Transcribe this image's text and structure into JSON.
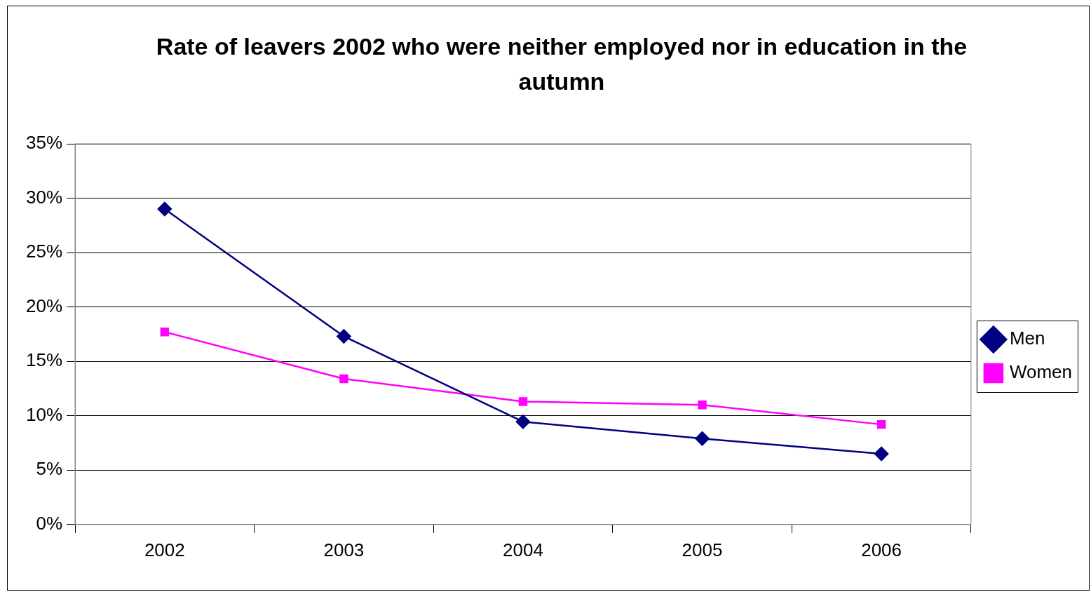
{
  "chart_data": {
    "type": "line",
    "title": "Rate of leavers 2002 who were neither employed nor in education in the autumn",
    "categories": [
      "2002",
      "2003",
      "2004",
      "2005",
      "2006"
    ],
    "series": [
      {
        "name": "Men",
        "color": "#000080",
        "marker": "diamond",
        "values": [
          29,
          17.3,
          9.45,
          7.9,
          6.5
        ]
      },
      {
        "name": "Women",
        "color": "#ff00ff",
        "marker": "square",
        "values": [
          17.7,
          13.4,
          11.3,
          11,
          9.2
        ]
      }
    ],
    "ylim": [
      0,
      35
    ],
    "yticks": [
      {
        "value": 0,
        "label": "0%"
      },
      {
        "value": 5,
        "label": "5%"
      },
      {
        "value": 10,
        "label": "10%"
      },
      {
        "value": 15,
        "label": "15%"
      },
      {
        "value": 20,
        "label": "20%"
      },
      {
        "value": 25,
        "label": "25%"
      },
      {
        "value": 30,
        "label": "30%"
      },
      {
        "value": 35,
        "label": "35%"
      }
    ],
    "grid": "y",
    "legend": "right",
    "line_style": "solid"
  }
}
